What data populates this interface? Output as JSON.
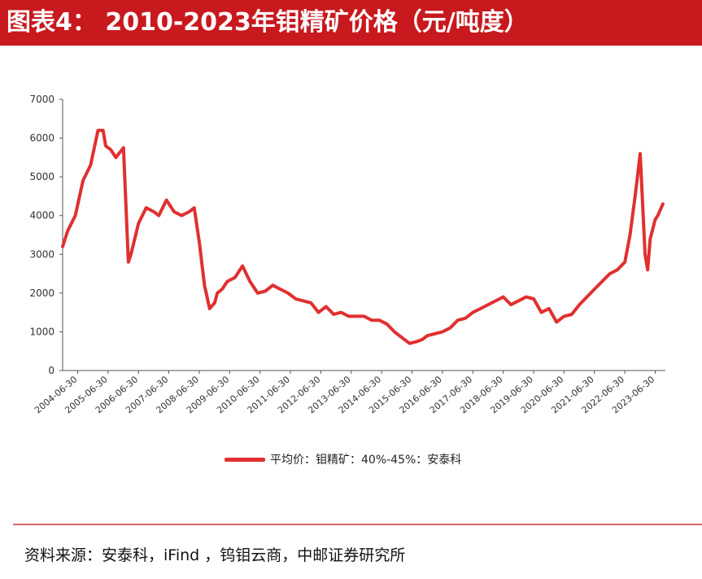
{
  "header": {
    "title": "图表4：  2010-2023年钼精矿价格（元/吨度）"
  },
  "chart_data": {
    "type": "line",
    "title": "",
    "xlabel": "",
    "ylabel": "",
    "ylim": [
      0,
      7000
    ],
    "yticks": [
      "0",
      "1000",
      "2000",
      "3000",
      "4000",
      "5000",
      "6000",
      "7000"
    ],
    "xticks": [
      "2004-06-30",
      "2005-06-30",
      "2006-06-30",
      "2007-06-30",
      "2008-06-30",
      "2009-06-30",
      "2010-06-30",
      "2011-06-30",
      "2012-06-30",
      "2013-06-30",
      "2014-06-30",
      "2015-06-30",
      "2016-06-30",
      "2017-06-30",
      "2018-06-30",
      "2019-06-30",
      "2020-06-30",
      "2021-06-30",
      "2022-06-30",
      "2023-06-30"
    ],
    "grid": false,
    "legend_position": "bottom",
    "color": "#e03030",
    "series": [
      {
        "name": "平均价：钼精矿：40%-45%：安泰科",
        "x": [
          "2004-01-01",
          "2004-03-01",
          "2004-06-01",
          "2004-09-01",
          "2004-12-01",
          "2005-03-01",
          "2005-05-01",
          "2005-06-01",
          "2005-08-01",
          "2005-10-01",
          "2006-01-01",
          "2006-03-01",
          "2006-04-01",
          "2006-07-01",
          "2006-10-01",
          "2007-01-01",
          "2007-03-01",
          "2007-06-01",
          "2007-09-01",
          "2007-12-01",
          "2008-03-01",
          "2008-05-01",
          "2008-07-01",
          "2008-09-01",
          "2008-11-01",
          "2009-01-01",
          "2009-02-01",
          "2009-04-01",
          "2009-06-01",
          "2009-09-01",
          "2009-12-01",
          "2010-03-01",
          "2010-06-01",
          "2010-09-01",
          "2010-12-01",
          "2011-03-01",
          "2011-06-01",
          "2011-09-01",
          "2011-12-01",
          "2012-03-01",
          "2012-06-01",
          "2012-09-01",
          "2012-12-01",
          "2013-03-01",
          "2013-06-01",
          "2013-09-01",
          "2013-12-01",
          "2014-03-01",
          "2014-06-01",
          "2014-09-01",
          "2014-12-01",
          "2015-03-01",
          "2015-06-01",
          "2015-09-01",
          "2015-11-01",
          "2016-01-01",
          "2016-04-01",
          "2016-07-01",
          "2016-10-01",
          "2017-01-01",
          "2017-04-01",
          "2017-07-01",
          "2017-10-01",
          "2018-01-01",
          "2018-04-01",
          "2018-07-01",
          "2018-10-01",
          "2019-01-01",
          "2019-04-01",
          "2019-07-01",
          "2019-10-01",
          "2020-01-01",
          "2020-04-01",
          "2020-07-01",
          "2020-10-01",
          "2021-01-01",
          "2021-04-01",
          "2021-07-01",
          "2021-10-01",
          "2022-01-01",
          "2022-04-01",
          "2022-07-01",
          "2022-09-01",
          "2022-11-01",
          "2023-01-01",
          "2023-03-01",
          "2023-04-01",
          "2023-05-01",
          "2023-07-01",
          "2023-08-01",
          "2023-10-01"
        ],
        "values": [
          3200,
          3600,
          4000,
          4900,
          5300,
          6200,
          6200,
          5800,
          5700,
          5500,
          5750,
          2800,
          3000,
          3800,
          4200,
          4100,
          4000,
          4400,
          4100,
          4000,
          4100,
          4200,
          3300,
          2200,
          1600,
          1750,
          2000,
          2100,
          2300,
          2400,
          2700,
          2300,
          2000,
          2050,
          2200,
          2100,
          2000,
          1850,
          1800,
          1750,
          1500,
          1650,
          1450,
          1500,
          1400,
          1400,
          1400,
          1300,
          1300,
          1200,
          1000,
          850,
          700,
          750,
          800,
          900,
          950,
          1000,
          1100,
          1300,
          1350,
          1500,
          1600,
          1700,
          1800,
          1900,
          1700,
          1800,
          1900,
          1850,
          1500,
          1600,
          1250,
          1400,
          1450,
          1700,
          1900,
          2100,
          2300,
          2500,
          2600,
          2800,
          3500,
          4500,
          5600,
          3000,
          2600,
          3400,
          3900,
          4000,
          4300
        ]
      }
    ]
  },
  "source": {
    "text": "资料来源：安泰科，iFind ，钨钼云商，中邮证券研究所"
  }
}
